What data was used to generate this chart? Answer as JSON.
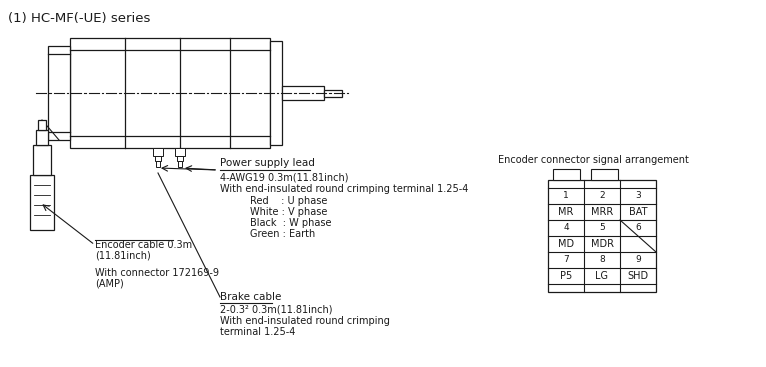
{
  "title": "(1) HC-MF(-UE) series",
  "bg_color": "#ffffff",
  "title_fontsize": 9.5,
  "label_fontsize": 7.5,
  "encoder_title": "Encoder connector signal arrangement",
  "connector_table": {
    "rows": [
      {
        "nums": [
          "1",
          "2",
          "3"
        ],
        "labels": [
          "MR",
          "MRR",
          "BAT"
        ]
      },
      {
        "nums": [
          "4",
          "5",
          "6"
        ],
        "labels": [
          "MD",
          "MDR",
          ""
        ]
      },
      {
        "nums": [
          "7",
          "8",
          "9"
        ],
        "labels": [
          "P5",
          "LG",
          "SHD"
        ]
      }
    ]
  },
  "power_lead_label": "Power supply lead",
  "power_lead_spec1": "4-AWG19 0.3m(11.81inch)",
  "power_lead_spec2": "With end-insulated round crimping terminal 1.25-4",
  "wire_colors": [
    "Red    : U phase",
    "White : V phase",
    "Black  : W phase",
    "Green : Earth"
  ],
  "encoder_cable_label": "Encoder cable 0.3m",
  "encoder_cable_label2": "(11.81inch)",
  "connector_label": "With connector 172169-9",
  "connector_label2": "(AMP)",
  "brake_cable_label": "Brake cable",
  "brake_spec1": "2-0.3² 0.3m(11.81inch)",
  "brake_spec2": "With end-insulated round crimping",
  "brake_spec3": "terminal 1.25-4"
}
